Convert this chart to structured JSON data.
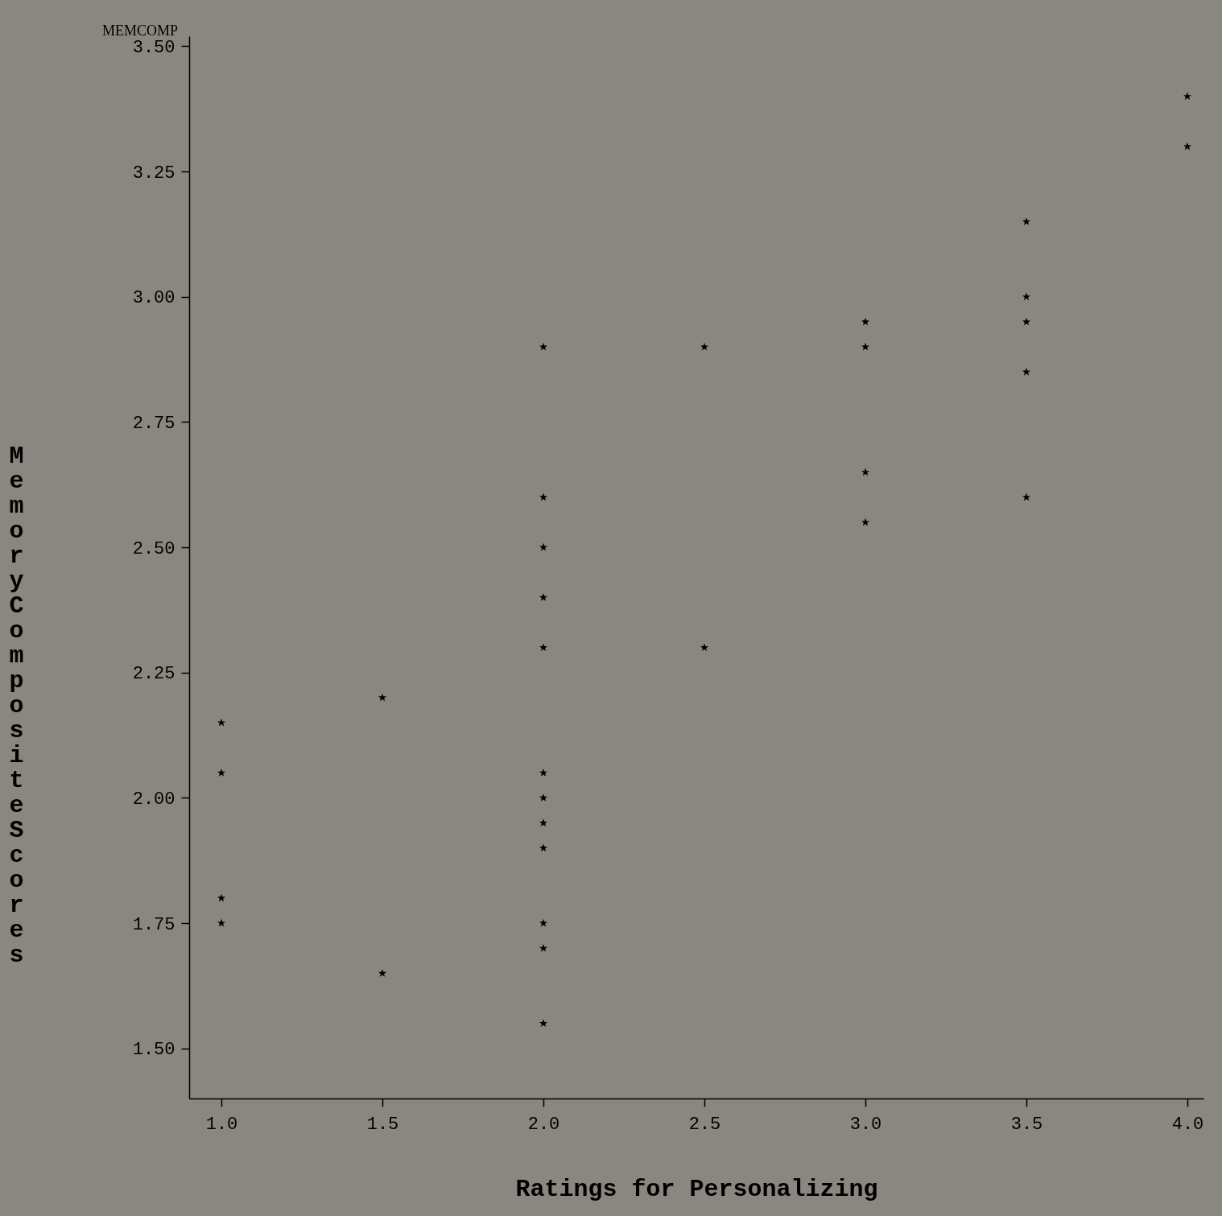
{
  "chart_data": {
    "type": "scatter",
    "xlabel": "Ratings for Personalizing",
    "ylabel": "Memory Composite Scores",
    "annotations": [
      "MEMCOMP"
    ],
    "x": [
      1.0,
      1.0,
      1.0,
      1.0,
      1.5,
      1.5,
      2.0,
      2.0,
      2.0,
      2.0,
      2.0,
      2.0,
      2.0,
      2.0,
      2.0,
      2.0,
      2.0,
      2.0,
      2.5,
      2.5,
      3.0,
      3.0,
      3.0,
      3.0,
      3.5,
      3.5,
      3.5,
      3.5,
      3.5,
      4.0,
      4.0
    ],
    "series": [
      {
        "color": "#000000",
        "values": [
          2.15,
          2.05,
          1.8,
          1.75,
          2.2,
          1.65,
          2.9,
          2.6,
          2.5,
          2.4,
          2.3,
          2.05,
          2.0,
          1.95,
          1.9,
          1.75,
          1.7,
          1.55,
          2.9,
          2.3,
          2.95,
          2.9,
          2.65,
          2.55,
          3.15,
          3.0,
          2.95,
          2.85,
          2.6,
          3.4,
          3.3
        ]
      }
    ],
    "xlim": [
      0.9,
      4.05
    ],
    "ylim": [
      1.4,
      3.52
    ],
    "xticks": [
      {
        "value": 1,
        "label": "1.0"
      },
      {
        "value": 1.5,
        "label": "1.5"
      },
      {
        "value": 2,
        "label": "2.0"
      },
      {
        "value": 2.5,
        "label": "2.5"
      },
      {
        "value": 3,
        "label": "3.0"
      },
      {
        "value": 3.5,
        "label": "3.5"
      },
      {
        "value": 4,
        "label": "4.0"
      }
    ],
    "yticks": [
      {
        "value": 1.5,
        "label": "1.50"
      },
      {
        "value": 1.75,
        "label": "1.75"
      },
      {
        "value": 2,
        "label": "2.00"
      },
      {
        "value": 2.25,
        "label": "2.25"
      },
      {
        "value": 2.5,
        "label": "2.50"
      },
      {
        "value": 2.75,
        "label": "2.75"
      },
      {
        "value": 3,
        "label": "3.00"
      },
      {
        "value": 3.25,
        "label": "3.25"
      },
      {
        "value": 3.5,
        "label": "3.50"
      }
    ],
    "grid": false,
    "marker": "star"
  }
}
